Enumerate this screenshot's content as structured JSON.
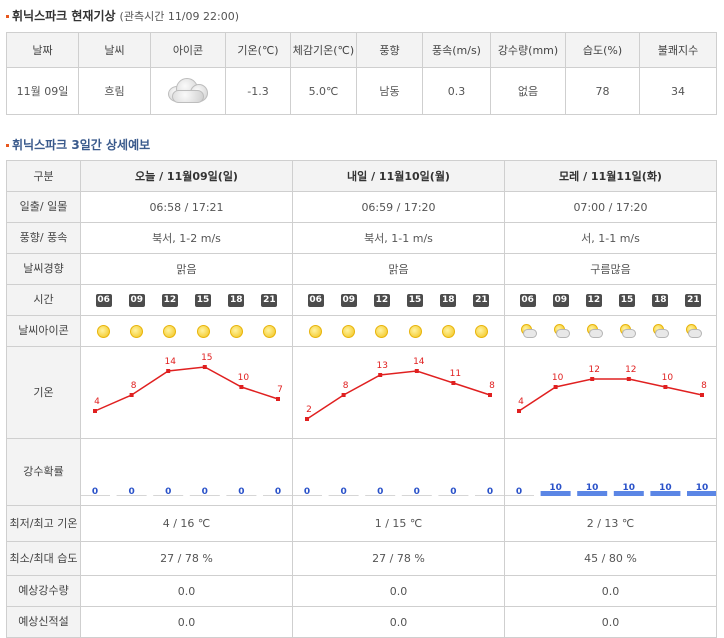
{
  "current": {
    "title": "휘닉스파크 현재기상",
    "observed": "(관측시간 11/09 22:00)",
    "headers": [
      "날짜",
      "날씨",
      "아이콘",
      "기온(℃)",
      "체감기온(℃)",
      "풍향",
      "풍속(m/s)",
      "강수량(mm)",
      "습도(%)",
      "불쾌지수"
    ],
    "row": {
      "date": "11월 09일",
      "weather": "흐림",
      "icon": "cloudy-icon",
      "temp": "-1.3",
      "feels": "5.0℃",
      "wind_dir": "남동",
      "wind_speed": "0.3",
      "rain": "없음",
      "humidity": "78",
      "discomfort": "34"
    }
  },
  "forecast": {
    "title": "휘닉스파크 3일간 상세예보",
    "corner": "구분",
    "row_labels": {
      "sun": "일출/ 일몰",
      "wind": "풍향/ 풍속",
      "trend": "날씨경향",
      "time": "시간",
      "icon": "날씨아이콘",
      "temp": "기온",
      "rain_prob": "강수확률",
      "minmax_temp": "최저/최고 기온",
      "minmax_hum": "최소/최대 습도",
      "rain_amt": "예상강수량",
      "snow_amt": "예상신적설"
    },
    "days": [
      {
        "header": "오늘 / 11월09일(일)",
        "sun": "06:58 / 17:21",
        "wind": "북서, 1-2 m/s",
        "trend": "맑음",
        "times": [
          "06",
          "09",
          "12",
          "15",
          "18",
          "21"
        ],
        "icons": [
          "sun-icon",
          "sun-icon",
          "sun-icon",
          "sun-icon",
          "sun-icon",
          "sun-icon"
        ],
        "temps": [
          4,
          8,
          14,
          15,
          10,
          7
        ],
        "rain_prob": [
          0,
          0,
          0,
          0,
          0,
          0
        ],
        "minmax_temp": "4 / 16 ℃",
        "minmax_hum": "27 / 78 %",
        "rain_amt": "0.0",
        "snow_amt": "0.0"
      },
      {
        "header": "내일 / 11월10일(월)",
        "sun": "06:59 / 17:20",
        "wind": "북서, 1-1 m/s",
        "trend": "맑음",
        "times": [
          "06",
          "09",
          "12",
          "15",
          "18",
          "21"
        ],
        "icons": [
          "sun-icon",
          "sun-icon",
          "sun-icon",
          "sun-icon",
          "sun-icon",
          "sun-icon"
        ],
        "temps": [
          2,
          8,
          13,
          14,
          11,
          8
        ],
        "rain_prob": [
          0,
          0,
          0,
          0,
          0,
          0
        ],
        "minmax_temp": "1 / 15 ℃",
        "minmax_hum": "27 / 78 %",
        "rain_amt": "0.0",
        "snow_amt": "0.0"
      },
      {
        "header": "모레 / 11월11일(화)",
        "sun": "07:00 / 17:20",
        "wind": "서, 1-1 m/s",
        "trend": "구름많음",
        "times": [
          "06",
          "09",
          "12",
          "15",
          "18",
          "21"
        ],
        "icons": [
          "partly-cloudy-icon",
          "partly-cloudy-icon",
          "partly-cloudy-icon",
          "partly-cloudy-icon",
          "partly-cloudy-icon",
          "partly-cloudy-icon"
        ],
        "temps": [
          4,
          10,
          12,
          12,
          10,
          8
        ],
        "rain_prob": [
          0,
          10,
          10,
          10,
          10,
          10
        ],
        "minmax_temp": "2 / 13 ℃",
        "minmax_hum": "45 / 80 %",
        "rain_amt": "0.0",
        "snow_amt": "0.0"
      }
    ]
  },
  "colors": {
    "temp_line": "#e02020",
    "rain_text": "#2a52c9",
    "rain_bar": "#5b86e5",
    "accent": "#e8571e"
  }
}
